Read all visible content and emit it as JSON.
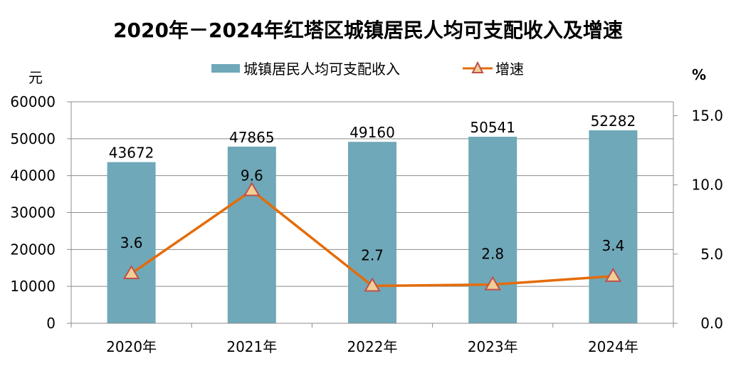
{
  "chart_data": {
    "type": "bar+line",
    "title": "2020年－2024年红塔区城镇居民人均可支配收入及增速",
    "categories": [
      "2020年",
      "2021年",
      "2022年",
      "2023年",
      "2024年"
    ],
    "y_left": {
      "label": "元",
      "range": [
        0,
        60000
      ],
      "ticks": [
        "0",
        "10000",
        "20000",
        "30000",
        "40000",
        "50000",
        "60000"
      ]
    },
    "y_right": {
      "label": "%",
      "range": [
        0,
        16
      ],
      "ticks": [
        "0.0",
        "5.0",
        "10.0",
        "15.0"
      ]
    },
    "grid": true,
    "legend_placement": "top",
    "series": [
      {
        "name": "城镇居民人均可支配收入",
        "type": "bar",
        "axis": "left",
        "color": "#6fa8b8",
        "values": [
          43672,
          47865,
          49160,
          50541,
          52282
        ],
        "labels": [
          "43672",
          "47865",
          "49160",
          "50541",
          "52282"
        ]
      },
      {
        "name": "增速",
        "type": "line",
        "axis": "right",
        "color": "#e46c0a",
        "marker": "triangle",
        "marker_fill": "#f0cf96",
        "marker_stroke": "#c0504d",
        "values": [
          3.6,
          9.6,
          2.7,
          2.8,
          3.4
        ],
        "labels": [
          "3.6",
          "9.6",
          "2.7",
          "2.8",
          "3.4"
        ]
      }
    ]
  }
}
